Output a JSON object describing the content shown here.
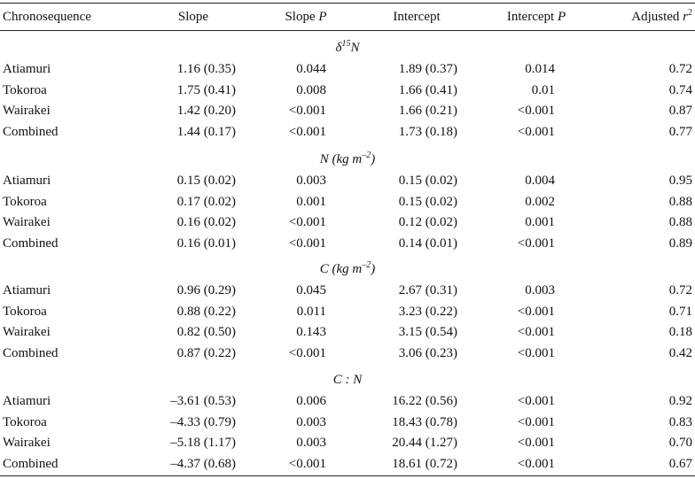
{
  "columns": {
    "chronosequence": "Chronosequence",
    "slope": "Slope",
    "slope_p_text": "Slope",
    "slope_p_italic": "P",
    "intercept": "Intercept",
    "intercept_p_text": "Intercept",
    "intercept_p_italic": "P",
    "adjusted_text": "Adjusted",
    "adjusted_italic": "r",
    "adjusted_sup": "2"
  },
  "sections": [
    {
      "title_pre": "δ",
      "title_sup": "15",
      "title_post": "N",
      "rows": [
        {
          "site": "Atiamuri",
          "slope": "1.16 (0.35)",
          "slope_p": "0.044",
          "intercept": "1.89 (0.37)",
          "intercept_p": "0.014",
          "r2": "0.72"
        },
        {
          "site": "Tokoroa",
          "slope": "1.75 (0.41)",
          "slope_p": "0.008",
          "intercept": "1.66 (0.41)",
          "intercept_p": "0.01",
          "r2": "0.74"
        },
        {
          "site": "Wairakei",
          "slope": "1.42 (0.20)",
          "slope_p": "<0.001",
          "intercept": "1.66 (0.21)",
          "intercept_p": "<0.001",
          "r2": "0.87"
        },
        {
          "site": "Combined",
          "slope": "1.44 (0.17)",
          "slope_p": "<0.001",
          "intercept": "1.73 (0.18)",
          "intercept_p": "<0.001",
          "r2": "0.77"
        }
      ]
    },
    {
      "title_pre": "N (kg m",
      "title_sup": "–2",
      "title_post": ")",
      "rows": [
        {
          "site": "Atiamuri",
          "slope": "0.15 (0.02)",
          "slope_p": "0.003",
          "intercept": "0.15 (0.02)",
          "intercept_p": "0.004",
          "r2": "0.95"
        },
        {
          "site": "Tokoroa",
          "slope": "0.17 (0.02)",
          "slope_p": "0.001",
          "intercept": "0.15 (0.02)",
          "intercept_p": "0.002",
          "r2": "0.88"
        },
        {
          "site": "Wairakei",
          "slope": "0.16 (0.02)",
          "slope_p": "<0.001",
          "intercept": "0.12 (0.02)",
          "intercept_p": "0.001",
          "r2": "0.88"
        },
        {
          "site": "Combined",
          "slope": "0.16 (0.01)",
          "slope_p": "<0.001",
          "intercept": "0.14 (0.01)",
          "intercept_p": "<0.001",
          "r2": "0.89"
        }
      ]
    },
    {
      "title_pre": "C (kg m",
      "title_sup": "–2",
      "title_post": ")",
      "rows": [
        {
          "site": "Atiamuri",
          "slope": "0.96 (0.29)",
          "slope_p": "0.045",
          "intercept": "2.67 (0.31)",
          "intercept_p": "0.003",
          "r2": "0.72"
        },
        {
          "site": "Tokoroa",
          "slope": "0.88 (0.22)",
          "slope_p": "0.011",
          "intercept": "3.23 (0.22)",
          "intercept_p": "<0.001",
          "r2": "0.71"
        },
        {
          "site": "Wairakei",
          "slope": "0.82 (0.50)",
          "slope_p": "0.143",
          "intercept": "3.15 (0.54)",
          "intercept_p": "<0.001",
          "r2": "0.18"
        },
        {
          "site": "Combined",
          "slope": "0.87 (0.22)",
          "slope_p": "<0.001",
          "intercept": "3.06 (0.23)",
          "intercept_p": "<0.001",
          "r2": "0.42"
        }
      ]
    },
    {
      "title_pre": "C : N",
      "title_sup": "",
      "title_post": "",
      "rows": [
        {
          "site": "Atiamuri",
          "slope": "–3.61 (0.53)",
          "slope_p": "0.006",
          "intercept": "16.22 (0.56)",
          "intercept_p": "<0.001",
          "r2": "0.92"
        },
        {
          "site": "Tokoroa",
          "slope": "–4.33 (0.79)",
          "slope_p": "0.003",
          "intercept": "18.43 (0.78)",
          "intercept_p": "<0.001",
          "r2": "0.83"
        },
        {
          "site": "Wairakei",
          "slope": "–5.18 (1.17)",
          "slope_p": "0.003",
          "intercept": "20.44 (1.27)",
          "intercept_p": "<0.001",
          "r2": "0.70"
        },
        {
          "site": "Combined",
          "slope": "–4.37 (0.68)",
          "slope_p": "<0.001",
          "intercept": "18.61 (0.72)",
          "intercept_p": "<0.001",
          "r2": "0.67"
        }
      ]
    }
  ]
}
